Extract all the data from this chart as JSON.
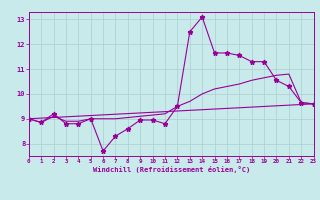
{
  "title": "",
  "xlabel": "Windchill (Refroidissement éolien,°C)",
  "ylabel": "",
  "background_color": "#c8eaea",
  "grid_color": "#aacece",
  "line_color": "#990099",
  "xmin": 0,
  "xmax": 23,
  "ymin": 7.5,
  "ymax": 13.3,
  "yticks": [
    8,
    9,
    10,
    11,
    12,
    13
  ],
  "xticks": [
    0,
    1,
    2,
    3,
    4,
    5,
    6,
    7,
    8,
    9,
    10,
    11,
    12,
    13,
    14,
    15,
    16,
    17,
    18,
    19,
    20,
    21,
    22,
    23
  ],
  "series1_x": [
    0,
    1,
    2,
    3,
    4,
    5,
    6,
    7,
    8,
    9,
    10,
    11,
    12,
    13,
    14,
    15,
    16,
    17,
    18,
    19,
    20,
    21,
    22,
    23
  ],
  "series1_y": [
    9.0,
    8.85,
    9.2,
    8.8,
    8.8,
    9.0,
    7.7,
    8.3,
    8.6,
    8.95,
    8.95,
    8.8,
    9.5,
    12.5,
    13.1,
    11.65,
    11.65,
    11.55,
    11.3,
    11.3,
    10.55,
    10.3,
    9.65,
    9.6
  ],
  "series2_x": [
    0,
    1,
    2,
    3,
    4,
    5,
    6,
    7,
    8,
    9,
    10,
    11,
    12,
    13,
    14,
    15,
    16,
    17,
    18,
    19,
    20,
    21,
    22,
    23
  ],
  "series2_y": [
    9.0,
    8.85,
    9.1,
    8.9,
    8.9,
    9.0,
    9.0,
    9.0,
    9.05,
    9.1,
    9.15,
    9.2,
    9.5,
    9.7,
    10.0,
    10.2,
    10.3,
    10.4,
    10.55,
    10.65,
    10.75,
    10.8,
    9.65,
    9.6
  ],
  "series3_x": [
    0,
    23
  ],
  "series3_y": [
    9.0,
    9.6
  ]
}
